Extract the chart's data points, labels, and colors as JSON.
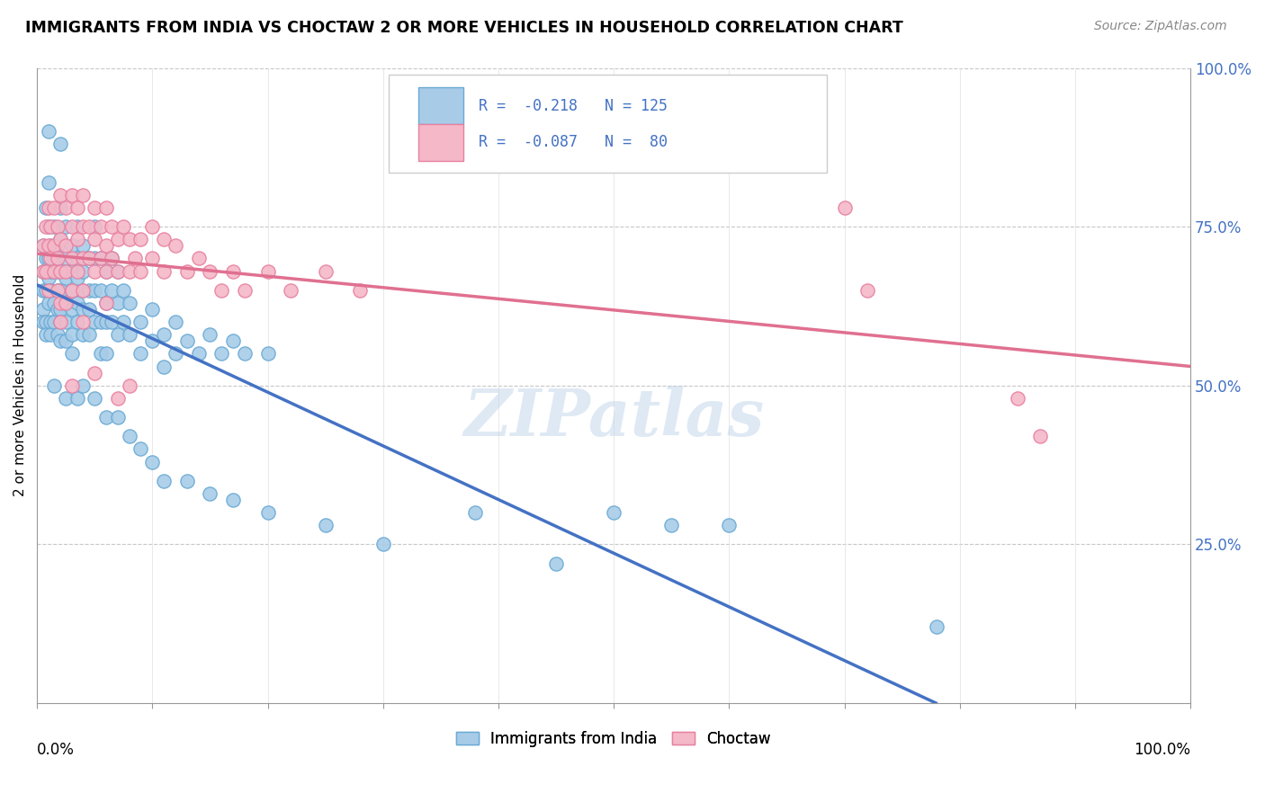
{
  "title": "IMMIGRANTS FROM INDIA VS CHOCTAW 2 OR MORE VEHICLES IN HOUSEHOLD CORRELATION CHART",
  "source_text": "Source: ZipAtlas.com",
  "ylabel": "2 or more Vehicles in Household",
  "watermark": "ZIPatlas",
  "india_color": "#a8cce8",
  "india_edge_color": "#6aaad4",
  "india_line_color": "#4472c4",
  "choctaw_color": "#f4b8c8",
  "choctaw_edge_color": "#e880a0",
  "choctaw_line_color": "#e07090",
  "legend_R_color": "#4472c4",
  "legend_N_color": "#4472c4",
  "ytick_color": "#4472c4",
  "india_points": [
    [
      0.005,
      0.72
    ],
    [
      0.005,
      0.68
    ],
    [
      0.005,
      0.65
    ],
    [
      0.005,
      0.62
    ],
    [
      0.005,
      0.6
    ],
    [
      0.008,
      0.78
    ],
    [
      0.008,
      0.7
    ],
    [
      0.008,
      0.65
    ],
    [
      0.008,
      0.6
    ],
    [
      0.008,
      0.58
    ],
    [
      0.01,
      0.82
    ],
    [
      0.01,
      0.75
    ],
    [
      0.01,
      0.7
    ],
    [
      0.01,
      0.67
    ],
    [
      0.01,
      0.63
    ],
    [
      0.012,
      0.72
    ],
    [
      0.012,
      0.68
    ],
    [
      0.012,
      0.65
    ],
    [
      0.012,
      0.6
    ],
    [
      0.012,
      0.58
    ],
    [
      0.015,
      0.75
    ],
    [
      0.015,
      0.7
    ],
    [
      0.015,
      0.68
    ],
    [
      0.015,
      0.63
    ],
    [
      0.015,
      0.6
    ],
    [
      0.018,
      0.72
    ],
    [
      0.018,
      0.68
    ],
    [
      0.018,
      0.65
    ],
    [
      0.018,
      0.62
    ],
    [
      0.018,
      0.58
    ],
    [
      0.02,
      0.78
    ],
    [
      0.02,
      0.73
    ],
    [
      0.02,
      0.68
    ],
    [
      0.02,
      0.65
    ],
    [
      0.02,
      0.62
    ],
    [
      0.02,
      0.6
    ],
    [
      0.02,
      0.57
    ],
    [
      0.025,
      0.75
    ],
    [
      0.025,
      0.7
    ],
    [
      0.025,
      0.67
    ],
    [
      0.025,
      0.63
    ],
    [
      0.025,
      0.6
    ],
    [
      0.025,
      0.57
    ],
    [
      0.03,
      0.72
    ],
    [
      0.03,
      0.68
    ],
    [
      0.03,
      0.65
    ],
    [
      0.03,
      0.62
    ],
    [
      0.03,
      0.58
    ],
    [
      0.03,
      0.55
    ],
    [
      0.035,
      0.75
    ],
    [
      0.035,
      0.7
    ],
    [
      0.035,
      0.67
    ],
    [
      0.035,
      0.63
    ],
    [
      0.035,
      0.6
    ],
    [
      0.04,
      0.72
    ],
    [
      0.04,
      0.68
    ],
    [
      0.04,
      0.65
    ],
    [
      0.04,
      0.62
    ],
    [
      0.04,
      0.58
    ],
    [
      0.045,
      0.7
    ],
    [
      0.045,
      0.65
    ],
    [
      0.045,
      0.62
    ],
    [
      0.045,
      0.58
    ],
    [
      0.05,
      0.75
    ],
    [
      0.05,
      0.7
    ],
    [
      0.05,
      0.65
    ],
    [
      0.05,
      0.6
    ],
    [
      0.055,
      0.7
    ],
    [
      0.055,
      0.65
    ],
    [
      0.055,
      0.6
    ],
    [
      0.055,
      0.55
    ],
    [
      0.06,
      0.68
    ],
    [
      0.06,
      0.63
    ],
    [
      0.06,
      0.6
    ],
    [
      0.06,
      0.55
    ],
    [
      0.065,
      0.7
    ],
    [
      0.065,
      0.65
    ],
    [
      0.065,
      0.6
    ],
    [
      0.07,
      0.68
    ],
    [
      0.07,
      0.63
    ],
    [
      0.07,
      0.58
    ],
    [
      0.075,
      0.65
    ],
    [
      0.075,
      0.6
    ],
    [
      0.08,
      0.63
    ],
    [
      0.08,
      0.58
    ],
    [
      0.09,
      0.6
    ],
    [
      0.09,
      0.55
    ],
    [
      0.1,
      0.62
    ],
    [
      0.1,
      0.57
    ],
    [
      0.11,
      0.58
    ],
    [
      0.11,
      0.53
    ],
    [
      0.12,
      0.6
    ],
    [
      0.12,
      0.55
    ],
    [
      0.13,
      0.57
    ],
    [
      0.14,
      0.55
    ],
    [
      0.15,
      0.58
    ],
    [
      0.16,
      0.55
    ],
    [
      0.17,
      0.57
    ],
    [
      0.18,
      0.55
    ],
    [
      0.2,
      0.55
    ],
    [
      0.01,
      0.9
    ],
    [
      0.02,
      0.88
    ],
    [
      0.015,
      0.5
    ],
    [
      0.025,
      0.48
    ],
    [
      0.035,
      0.48
    ],
    [
      0.04,
      0.5
    ],
    [
      0.05,
      0.48
    ],
    [
      0.06,
      0.45
    ],
    [
      0.07,
      0.45
    ],
    [
      0.08,
      0.42
    ],
    [
      0.09,
      0.4
    ],
    [
      0.1,
      0.38
    ],
    [
      0.11,
      0.35
    ],
    [
      0.13,
      0.35
    ],
    [
      0.15,
      0.33
    ],
    [
      0.17,
      0.32
    ],
    [
      0.2,
      0.3
    ],
    [
      0.25,
      0.28
    ],
    [
      0.3,
      0.25
    ],
    [
      0.38,
      0.3
    ],
    [
      0.45,
      0.22
    ],
    [
      0.5,
      0.3
    ],
    [
      0.55,
      0.28
    ],
    [
      0.6,
      0.28
    ],
    [
      0.78,
      0.12
    ]
  ],
  "choctaw_points": [
    [
      0.005,
      0.72
    ],
    [
      0.005,
      0.68
    ],
    [
      0.008,
      0.75
    ],
    [
      0.008,
      0.68
    ],
    [
      0.01,
      0.78
    ],
    [
      0.01,
      0.72
    ],
    [
      0.01,
      0.65
    ],
    [
      0.012,
      0.75
    ],
    [
      0.012,
      0.7
    ],
    [
      0.015,
      0.78
    ],
    [
      0.015,
      0.72
    ],
    [
      0.015,
      0.68
    ],
    [
      0.018,
      0.75
    ],
    [
      0.018,
      0.7
    ],
    [
      0.018,
      0.65
    ],
    [
      0.02,
      0.8
    ],
    [
      0.02,
      0.73
    ],
    [
      0.02,
      0.68
    ],
    [
      0.02,
      0.63
    ],
    [
      0.02,
      0.6
    ],
    [
      0.025,
      0.78
    ],
    [
      0.025,
      0.72
    ],
    [
      0.025,
      0.68
    ],
    [
      0.025,
      0.63
    ],
    [
      0.03,
      0.8
    ],
    [
      0.03,
      0.75
    ],
    [
      0.03,
      0.7
    ],
    [
      0.03,
      0.65
    ],
    [
      0.035,
      0.78
    ],
    [
      0.035,
      0.73
    ],
    [
      0.035,
      0.68
    ],
    [
      0.04,
      0.8
    ],
    [
      0.04,
      0.75
    ],
    [
      0.04,
      0.7
    ],
    [
      0.04,
      0.65
    ],
    [
      0.04,
      0.6
    ],
    [
      0.045,
      0.75
    ],
    [
      0.045,
      0.7
    ],
    [
      0.05,
      0.78
    ],
    [
      0.05,
      0.73
    ],
    [
      0.05,
      0.68
    ],
    [
      0.055,
      0.75
    ],
    [
      0.055,
      0.7
    ],
    [
      0.06,
      0.78
    ],
    [
      0.06,
      0.72
    ],
    [
      0.06,
      0.68
    ],
    [
      0.06,
      0.63
    ],
    [
      0.065,
      0.75
    ],
    [
      0.065,
      0.7
    ],
    [
      0.07,
      0.73
    ],
    [
      0.07,
      0.68
    ],
    [
      0.075,
      0.75
    ],
    [
      0.08,
      0.73
    ],
    [
      0.08,
      0.68
    ],
    [
      0.085,
      0.7
    ],
    [
      0.09,
      0.73
    ],
    [
      0.09,
      0.68
    ],
    [
      0.1,
      0.75
    ],
    [
      0.1,
      0.7
    ],
    [
      0.11,
      0.73
    ],
    [
      0.11,
      0.68
    ],
    [
      0.12,
      0.72
    ],
    [
      0.13,
      0.68
    ],
    [
      0.14,
      0.7
    ],
    [
      0.15,
      0.68
    ],
    [
      0.16,
      0.65
    ],
    [
      0.17,
      0.68
    ],
    [
      0.18,
      0.65
    ],
    [
      0.2,
      0.68
    ],
    [
      0.22,
      0.65
    ],
    [
      0.25,
      0.68
    ],
    [
      0.28,
      0.65
    ],
    [
      0.7,
      0.78
    ],
    [
      0.72,
      0.65
    ],
    [
      0.85,
      0.48
    ],
    [
      0.87,
      0.42
    ],
    [
      0.03,
      0.5
    ],
    [
      0.05,
      0.52
    ],
    [
      0.07,
      0.48
    ],
    [
      0.08,
      0.5
    ]
  ]
}
